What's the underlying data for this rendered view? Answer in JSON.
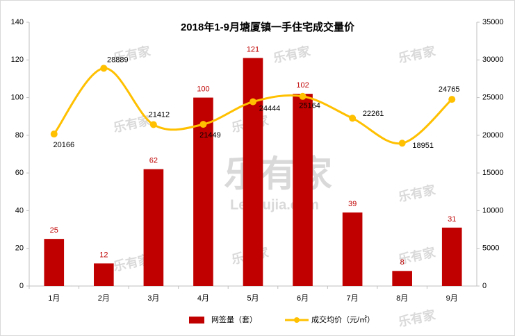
{
  "chart_data": {
    "type": "bar",
    "title": "2018年1-9月塘厦镇一手住宅成交量价",
    "categories": [
      "1月",
      "2月",
      "3月",
      "4月",
      "5月",
      "6月",
      "7月",
      "8月",
      "9月"
    ],
    "series": [
      {
        "name": "网签量（套）",
        "type": "bar",
        "color": "#c00000",
        "label_color": "#c00000",
        "values": [
          25,
          12,
          62,
          100,
          121,
          102,
          39,
          8,
          31
        ]
      },
      {
        "name": "成交均价（元/㎡）",
        "type": "line",
        "axis": "y2",
        "color": "#ffc000",
        "label_color": "#000000",
        "values": [
          20166,
          28889,
          21412,
          21449,
          24444,
          25164,
          22261,
          18951,
          24765
        ]
      }
    ],
    "ylim": [
      0,
      140
    ],
    "yticks": [
      0,
      20,
      40,
      60,
      80,
      100,
      120,
      140
    ],
    "y2lim": [
      0,
      35000
    ],
    "y2ticks": [
      0,
      5000,
      10000,
      15000,
      20000,
      25000,
      30000,
      35000
    ],
    "grid": false,
    "legend": "bottom",
    "watermark": "乐有家",
    "watermark_url": "Leyoujia.com"
  }
}
